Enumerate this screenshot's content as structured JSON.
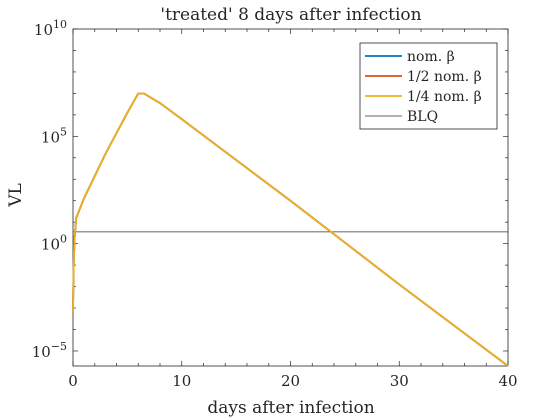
{
  "chart_data": {
    "type": "line",
    "title": "'treated' 8 days after infection",
    "xlabel": "days after infection",
    "ylabel": "VL",
    "xlim": [
      0,
      40
    ],
    "ylim_log10": [
      -5.7,
      10
    ],
    "yscale": "log",
    "grid": false,
    "legend_position": "top-right",
    "xticks": [
      {
        "value": 0,
        "label": "0"
      },
      {
        "value": 10,
        "label": "10"
      },
      {
        "value": 20,
        "label": "20"
      },
      {
        "value": 30,
        "label": "30"
      },
      {
        "value": 40,
        "label": "40"
      }
    ],
    "yticks": [
      {
        "log10": 10,
        "base": "10",
        "exp": "10"
      },
      {
        "log10": 5,
        "base": "10",
        "exp": "5"
      },
      {
        "log10": 0,
        "base": "10",
        "exp": "0"
      },
      {
        "log10": -5,
        "base": "10",
        "exp": "−5"
      }
    ],
    "series": [
      {
        "name": "nom. β",
        "color": "#0072BD",
        "x": [
          0,
          0.05,
          0.15,
          0.3,
          1,
          3,
          5,
          6,
          6.5,
          7,
          8,
          10,
          20,
          30,
          40
        ],
        "log10_y": [
          -3.2,
          -1.2,
          0.3,
          1.2,
          2.1,
          4.2,
          6.1,
          7.0,
          7.0,
          6.85,
          6.55,
          5.8,
          2.0,
          -1.9,
          -5.7
        ]
      },
      {
        "name": "1/2 nom. β",
        "color": "#D95319",
        "x": [
          0,
          0.05,
          0.15,
          0.3,
          1,
          3,
          5,
          6,
          6.5,
          7,
          8,
          10,
          20,
          30,
          40
        ],
        "log10_y": [
          -3.2,
          -1.2,
          0.3,
          1.2,
          2.1,
          4.2,
          6.1,
          7.0,
          7.0,
          6.85,
          6.55,
          5.8,
          2.0,
          -1.9,
          -5.7
        ]
      },
      {
        "name": "1/4 nom. β",
        "color": "#EDB120",
        "x": [
          0,
          0.05,
          0.15,
          0.3,
          1,
          3,
          5,
          6,
          6.5,
          7,
          8,
          10,
          20,
          30,
          40
        ],
        "log10_y": [
          -3.2,
          -1.2,
          0.3,
          1.2,
          2.1,
          4.2,
          6.1,
          7.0,
          7.0,
          6.85,
          6.55,
          5.8,
          2.0,
          -1.9,
          -5.7
        ]
      }
    ],
    "reference_line": {
      "name": "BLQ",
      "color": "#333333",
      "log10_y": 0.55
    }
  }
}
